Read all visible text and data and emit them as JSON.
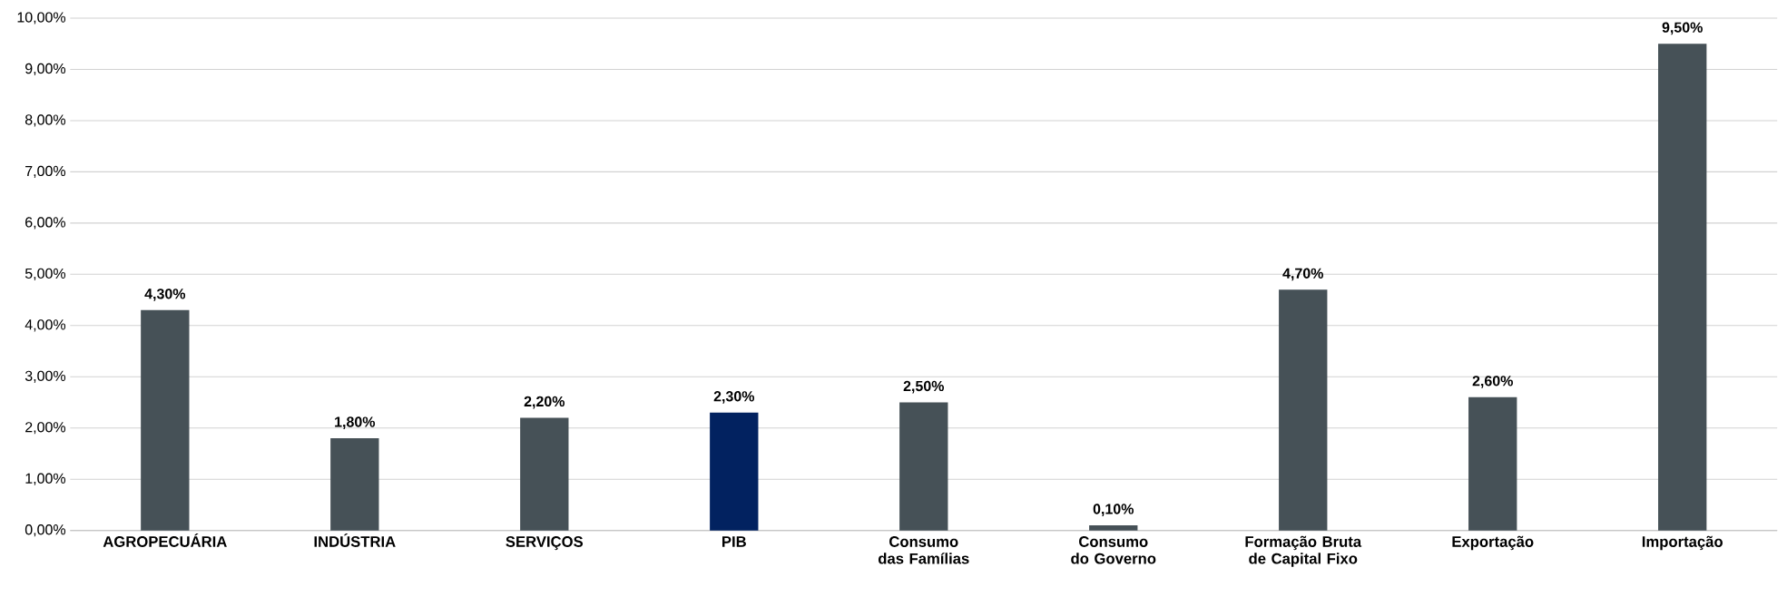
{
  "chart_data": {
    "type": "bar",
    "categories": [
      "AGROPECUÁRIA",
      "INDÚSTRIA",
      "SERVIÇOS",
      "PIB",
      "Consumo das Famílias",
      "Consumo do Governo",
      "Formação Bruta de Capital Fixo",
      "Exportação",
      "Importação"
    ],
    "values": [
      4.3,
      1.8,
      2.2,
      2.3,
      2.5,
      0.1,
      4.7,
      2.6,
      9.5
    ],
    "colors": [
      "#465157",
      "#465157",
      "#465157",
      "#022260",
      "#465157",
      "#465157",
      "#465157",
      "#465157",
      "#465157"
    ],
    "value_labels": [
      "4,30%",
      "1,80%",
      "2,20%",
      "2,30%",
      "2,50%",
      "0,10%",
      "4,70%",
      "2,60%",
      "9,50%"
    ],
    "ylim": [
      0,
      10
    ],
    "yticks": [
      {
        "value": 0,
        "label": "0,00%"
      },
      {
        "value": 1,
        "label": "1,00%"
      },
      {
        "value": 2,
        "label": "2,00%"
      },
      {
        "value": 3,
        "label": "3,00%"
      },
      {
        "value": 4,
        "label": "4,00%"
      },
      {
        "value": 5,
        "label": "5,00%"
      },
      {
        "value": 6,
        "label": "6,00%"
      },
      {
        "value": 7,
        "label": "7,00%"
      },
      {
        "value": 8,
        "label": "8,00%"
      },
      {
        "value": 9,
        "label": "9,00%"
      },
      {
        "value": 10,
        "label": "10,00%"
      }
    ],
    "grid": "y"
  }
}
